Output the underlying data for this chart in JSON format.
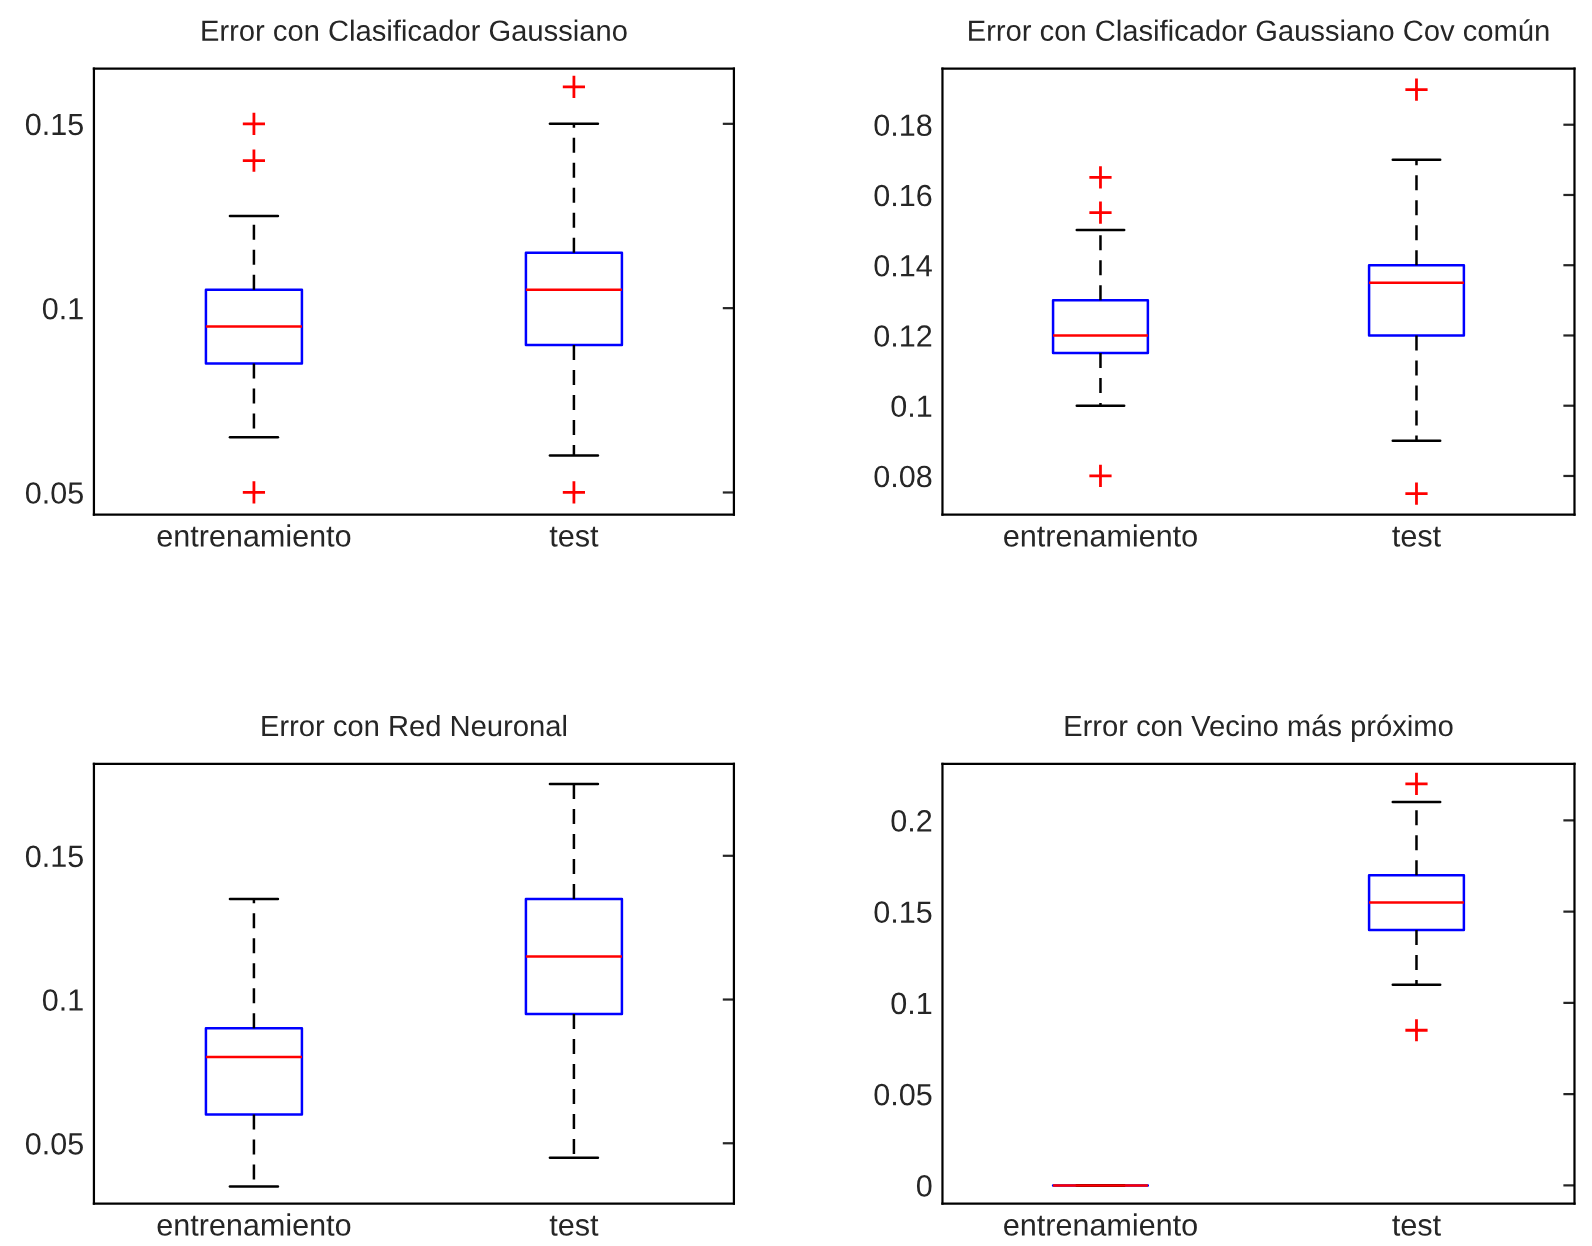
{
  "chart_data": [
    {
      "type": "box",
      "title": "Error con Clasificador Gaussiano",
      "categories": [
        "entrenamiento",
        "test"
      ],
      "ylim": [
        0.044,
        0.165
      ],
      "yticks": [
        0.05,
        0.1,
        0.15
      ],
      "series": [
        {
          "color": "#0000ff",
          "boxes": [
            {
              "low": 0.065,
              "q1": 0.085,
              "median": 0.095,
              "q3": 0.105,
              "high": 0.125,
              "outliers": [
                0.15,
                0.14,
                0.05
              ]
            },
            {
              "low": 0.06,
              "q1": 0.09,
              "median": 0.105,
              "q3": 0.115,
              "high": 0.15,
              "outliers": [
                0.16,
                0.05
              ]
            }
          ]
        }
      ]
    },
    {
      "type": "box",
      "title": "Error con Clasificador Gaussiano Cov común",
      "categories": [
        "entrenamiento",
        "test"
      ],
      "ylim": [
        0.069,
        0.196
      ],
      "yticks": [
        0.08,
        0.1,
        0.12,
        0.14,
        0.16,
        0.18
      ],
      "series": [
        {
          "color": "#0000ff",
          "boxes": [
            {
              "low": 0.1,
              "q1": 0.115,
              "median": 0.12,
              "q3": 0.13,
              "high": 0.15,
              "outliers": [
                0.165,
                0.155,
                0.08
              ]
            },
            {
              "low": 0.09,
              "q1": 0.12,
              "median": 0.135,
              "q3": 0.14,
              "high": 0.17,
              "outliers": [
                0.19,
                0.075
              ]
            }
          ]
        }
      ]
    },
    {
      "type": "box",
      "title": "Error con Red Neuronal",
      "categories": [
        "entrenamiento",
        "test"
      ],
      "ylim": [
        0.029,
        0.182
      ],
      "yticks": [
        0.05,
        0.1,
        0.15
      ],
      "series": [
        {
          "color": "#0000ff",
          "boxes": [
            {
              "low": 0.035,
              "q1": 0.06,
              "median": 0.08,
              "q3": 0.09,
              "high": 0.135
            },
            {
              "low": 0.045,
              "q1": 0.095,
              "median": 0.115,
              "q3": 0.135,
              "high": 0.175
            }
          ]
        }
      ]
    },
    {
      "type": "box",
      "title": "Error con Vecino más próximo",
      "categories": [
        "entrenamiento",
        "test"
      ],
      "ylim": [
        -0.01,
        0.231
      ],
      "yticks": [
        0,
        0.05,
        0.1,
        0.15,
        0.2
      ],
      "series": [
        {
          "color": "#0000ff",
          "boxes": [
            {
              "low": 0,
              "q1": 0,
              "median": 0,
              "q3": 0,
              "high": 0
            },
            {
              "low": 0.11,
              "q1": 0.14,
              "median": 0.155,
              "q3": 0.17,
              "high": 0.21,
              "outliers": [
                0.22,
                0.085
              ]
            }
          ]
        }
      ]
    }
  ]
}
